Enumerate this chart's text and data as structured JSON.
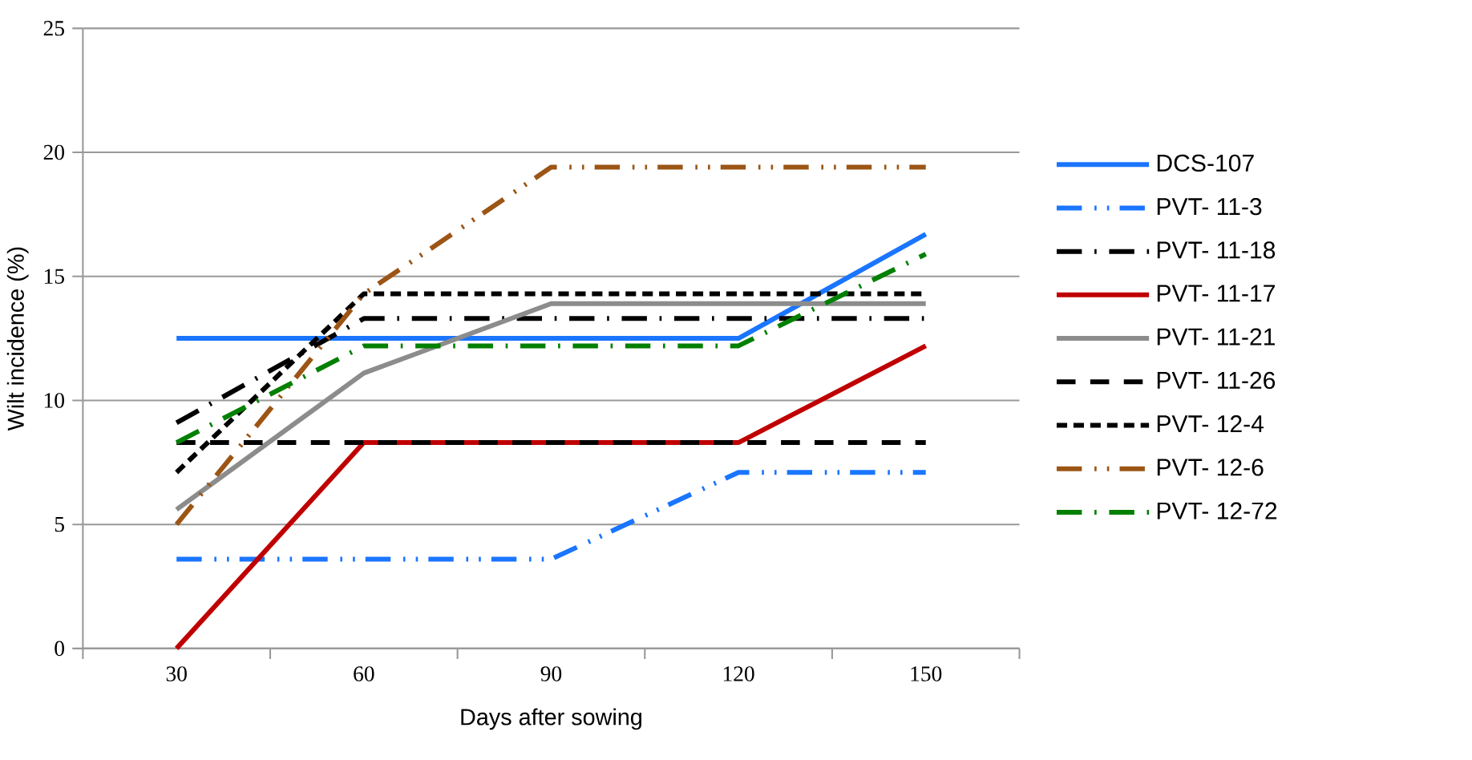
{
  "chart_data": {
    "type": "line",
    "xlabel": "Days after sowing",
    "ylabel": "Wilt  incidence (%)",
    "categories": [
      "30",
      "60",
      "90",
      "120",
      "150"
    ],
    "ylim": [
      0,
      25
    ],
    "yticks": [
      0,
      5,
      10,
      15,
      20,
      25
    ],
    "grid": "y",
    "legend": "right",
    "series": [
      {
        "name": "DCS-107",
        "color": "#1a75ff",
        "line_style": "solid",
        "values": [
          12.5,
          12.5,
          12.5,
          12.5,
          16.7
        ]
      },
      {
        "name": "PVT- 11-3",
        "color": "#1a75ff",
        "line_style": "dashdotdotted",
        "values": [
          3.6,
          3.6,
          3.6,
          7.1,
          7.1
        ]
      },
      {
        "name": "PVT- 11-18",
        "color": "#000000",
        "line_style": "dashdotted",
        "values": [
          9.1,
          13.3,
          13.3,
          13.3,
          13.3
        ]
      },
      {
        "name": "PVT- 11-17",
        "color": "#c00000",
        "line_style": "solid",
        "values": [
          0,
          8.3,
          8.3,
          8.3,
          12.2
        ]
      },
      {
        "name": "PVT- 11-21",
        "color": "#8c8c8c",
        "line_style": "solid",
        "values": [
          5.6,
          11.1,
          13.9,
          13.9,
          13.9
        ]
      },
      {
        "name": "PVT- 11-26",
        "color": "#000000",
        "line_style": "long dashed",
        "values": [
          8.3,
          8.3,
          8.3,
          8.3,
          8.3
        ]
      },
      {
        "name": "PVT- 12-4",
        "color": "#000000",
        "line_style": "dashed",
        "values": [
          7.1,
          14.3,
          14.3,
          14.3,
          14.3
        ]
      },
      {
        "name": "PVT- 12-6",
        "color": "#9c5515",
        "line_style": "dashdotdotted",
        "values": [
          5,
          14.3,
          19.4,
          19.4,
          19.4
        ]
      },
      {
        "name": "PVT- 12-72",
        "color": "#008000",
        "line_style": "dashdotted",
        "values": [
          8.3,
          12.2,
          12.2,
          12.2,
          15.9
        ]
      }
    ]
  }
}
